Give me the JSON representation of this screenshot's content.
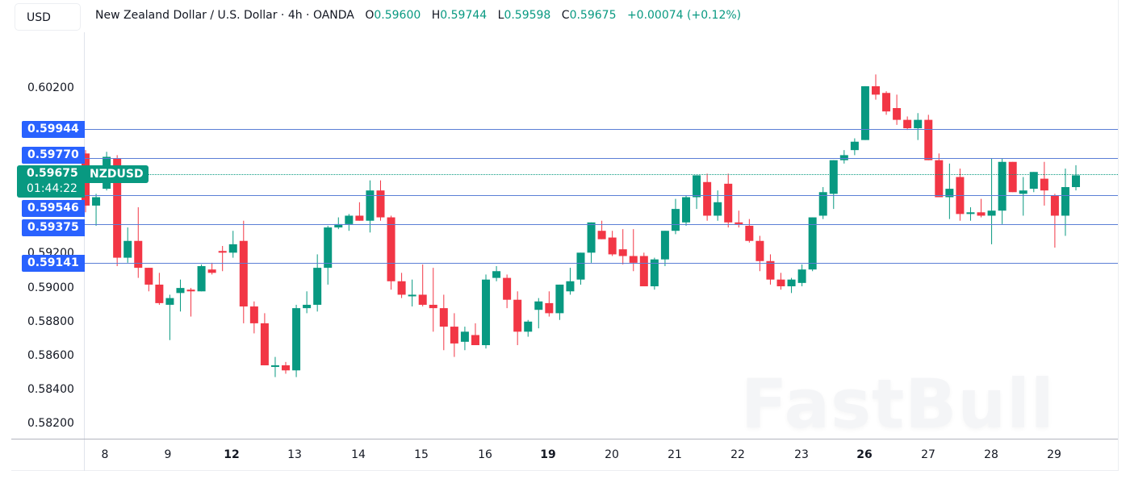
{
  "header": {
    "currency": "USD",
    "title": "New Zealand Dollar / U.S. Dollar · 4h · OANDA",
    "ohlc": {
      "o_label": "O",
      "o_value": "0.59600",
      "h_label": "H",
      "h_value": "0.59744",
      "l_label": "L",
      "l_value": "0.59598",
      "c_label": "C",
      "c_value": "0.59675",
      "change": "+0.00074 (+0.12%)"
    }
  },
  "last_price": {
    "price": "0.59675",
    "countdown": "01:44:22",
    "symbol": "NZDUSD"
  },
  "levels": [
    {
      "label": "0.59944",
      "value": 0.59944
    },
    {
      "label": "0.59770",
      "value": 0.5977
    },
    {
      "label": "0.59546",
      "value": 0.59546
    },
    {
      "label": "0.59375",
      "value": 0.59375
    },
    {
      "label": "0.59141",
      "value": 0.59141
    }
  ],
  "y_ticks": [
    "0.60200",
    "0.59200",
    "0.59000",
    "0.58800",
    "0.58600",
    "0.58400",
    "0.58200"
  ],
  "x_ticks": [
    {
      "label": "8",
      "bold": false
    },
    {
      "label": "9",
      "bold": false
    },
    {
      "label": "12",
      "bold": true
    },
    {
      "label": "13",
      "bold": false
    },
    {
      "label": "14",
      "bold": false
    },
    {
      "label": "15",
      "bold": false
    },
    {
      "label": "16",
      "bold": false
    },
    {
      "label": "19",
      "bold": true
    },
    {
      "label": "20",
      "bold": false
    },
    {
      "label": "21",
      "bold": false
    },
    {
      "label": "22",
      "bold": false
    },
    {
      "label": "23",
      "bold": false
    },
    {
      "label": "26",
      "bold": true
    },
    {
      "label": "27",
      "bold": false
    },
    {
      "label": "28",
      "bold": false
    },
    {
      "label": "29",
      "bold": false
    }
  ],
  "watermark": "FastBull",
  "colors": {
    "up": "#089981",
    "down": "#f23645",
    "level": "#2962ff",
    "text": "#131722"
  },
  "chart_data": {
    "type": "candlestick",
    "title": "New Zealand Dollar / U.S. Dollar · 4h · OANDA",
    "symbol": "NZDUSD",
    "timeframe": "4h",
    "xlabel": "",
    "ylabel": "",
    "ylim": [
      0.581,
      0.6042
    ],
    "grid": false,
    "x_tick_labels": [
      "8",
      "9",
      "12",
      "13",
      "14",
      "15",
      "16",
      "19",
      "20",
      "21",
      "22",
      "23",
      "26",
      "27",
      "28",
      "29"
    ],
    "y_tick_labels": [
      "0.60200",
      "0.59200",
      "0.59000",
      "0.58800",
      "0.58600",
      "0.58400",
      "0.58200"
    ],
    "horizontal_levels": [
      0.59944,
      0.5977,
      0.59546,
      0.59375,
      0.59141
    ],
    "last_price": 0.59675,
    "candles": [
      {
        "o": 0.5981,
        "h": 0.5983,
        "l": 0.5946,
        "c": 0.595
      },
      {
        "o": 0.595,
        "h": 0.5957,
        "l": 0.5938,
        "c": 0.5955
      },
      {
        "o": 0.596,
        "h": 0.5982,
        "l": 0.5959,
        "c": 0.5979
      },
      {
        "o": 0.5978,
        "h": 0.598,
        "l": 0.5914,
        "c": 0.5919
      },
      {
        "o": 0.5919,
        "h": 0.5937,
        "l": 0.5916,
        "c": 0.5929
      },
      {
        "o": 0.5929,
        "h": 0.5949,
        "l": 0.5907,
        "c": 0.5913
      },
      {
        "o": 0.5913,
        "h": 0.5913,
        "l": 0.5899,
        "c": 0.5903
      },
      {
        "o": 0.5903,
        "h": 0.591,
        "l": 0.5891,
        "c": 0.5892
      },
      {
        "o": 0.5891,
        "h": 0.5897,
        "l": 0.587,
        "c": 0.5895
      },
      {
        "o": 0.5898,
        "h": 0.5906,
        "l": 0.5887,
        "c": 0.5901
      },
      {
        "o": 0.59,
        "h": 0.5901,
        "l": 0.5884,
        "c": 0.5899
      },
      {
        "o": 0.5899,
        "h": 0.5915,
        "l": 0.5899,
        "c": 0.5914
      },
      {
        "o": 0.5912,
        "h": 0.5916,
        "l": 0.5909,
        "c": 0.591
      },
      {
        "o": 0.5923,
        "h": 0.5926,
        "l": 0.5911,
        "c": 0.5922
      },
      {
        "o": 0.5922,
        "h": 0.5935,
        "l": 0.5919,
        "c": 0.5927
      },
      {
        "o": 0.5929,
        "h": 0.5941,
        "l": 0.588,
        "c": 0.589
      },
      {
        "o": 0.589,
        "h": 0.5893,
        "l": 0.5874,
        "c": 0.588
      },
      {
        "o": 0.588,
        "h": 0.5886,
        "l": 0.5859,
        "c": 0.5855
      },
      {
        "o": 0.5855,
        "h": 0.586,
        "l": 0.5848,
        "c": 0.5855
      },
      {
        "o": 0.5855,
        "h": 0.5857,
        "l": 0.585,
        "c": 0.5852
      },
      {
        "o": 0.5852,
        "h": 0.5891,
        "l": 0.5848,
        "c": 0.5889
      },
      {
        "o": 0.5889,
        "h": 0.5899,
        "l": 0.5886,
        "c": 0.5891
      },
      {
        "o": 0.5891,
        "h": 0.5921,
        "l": 0.5887,
        "c": 0.5913
      },
      {
        "o": 0.5913,
        "h": 0.5938,
        "l": 0.5903,
        "c": 0.5937
      },
      {
        "o": 0.5937,
        "h": 0.5943,
        "l": 0.5936,
        "c": 0.5939
      },
      {
        "o": 0.5939,
        "h": 0.5945,
        "l": 0.5935,
        "c": 0.5944
      },
      {
        "o": 0.5944,
        "h": 0.5952,
        "l": 0.5941,
        "c": 0.5941
      },
      {
        "o": 0.5941,
        "h": 0.5965,
        "l": 0.5934,
        "c": 0.5959
      },
      {
        "o": 0.5959,
        "h": 0.5965,
        "l": 0.5941,
        "c": 0.5943
      },
      {
        "o": 0.5943,
        "h": 0.5944,
        "l": 0.59,
        "c": 0.5905
      },
      {
        "o": 0.5905,
        "h": 0.591,
        "l": 0.5895,
        "c": 0.5897
      },
      {
        "o": 0.5897,
        "h": 0.5906,
        "l": 0.589,
        "c": 0.5897
      },
      {
        "o": 0.5897,
        "h": 0.5915,
        "l": 0.589,
        "c": 0.5891
      },
      {
        "o": 0.5891,
        "h": 0.5913,
        "l": 0.5875,
        "c": 0.5889
      },
      {
        "o": 0.5889,
        "h": 0.5897,
        "l": 0.5864,
        "c": 0.5878
      },
      {
        "o": 0.5878,
        "h": 0.5886,
        "l": 0.586,
        "c": 0.5868
      },
      {
        "o": 0.5869,
        "h": 0.5878,
        "l": 0.5864,
        "c": 0.5875
      },
      {
        "o": 0.5873,
        "h": 0.588,
        "l": 0.5867,
        "c": 0.5867
      },
      {
        "o": 0.5867,
        "h": 0.5909,
        "l": 0.5865,
        "c": 0.5906
      },
      {
        "o": 0.5907,
        "h": 0.5914,
        "l": 0.5905,
        "c": 0.5911
      },
      {
        "o": 0.5907,
        "h": 0.5909,
        "l": 0.5889,
        "c": 0.5894
      },
      {
        "o": 0.5894,
        "h": 0.5899,
        "l": 0.5867,
        "c": 0.5875
      },
      {
        "o": 0.5875,
        "h": 0.5882,
        "l": 0.5872,
        "c": 0.5881
      },
      {
        "o": 0.5888,
        "h": 0.5895,
        "l": 0.5877,
        "c": 0.5893
      },
      {
        "o": 0.5892,
        "h": 0.5899,
        "l": 0.5884,
        "c": 0.5886
      },
      {
        "o": 0.5886,
        "h": 0.5902,
        "l": 0.5882,
        "c": 0.5903
      },
      {
        "o": 0.5899,
        "h": 0.5913,
        "l": 0.5897,
        "c": 0.5905
      },
      {
        "o": 0.5906,
        "h": 0.5917,
        "l": 0.5903,
        "c": 0.5922
      },
      {
        "o": 0.5922,
        "h": 0.5937,
        "l": 0.5916,
        "c": 0.594
      },
      {
        "o": 0.5935,
        "h": 0.5941,
        "l": 0.593,
        "c": 0.593
      },
      {
        "o": 0.5931,
        "h": 0.5935,
        "l": 0.592,
        "c": 0.5921
      },
      {
        "o": 0.5924,
        "h": 0.5936,
        "l": 0.5915,
        "c": 0.592
      },
      {
        "o": 0.592,
        "h": 0.5936,
        "l": 0.5911,
        "c": 0.5916
      },
      {
        "o": 0.592,
        "h": 0.5922,
        "l": 0.5905,
        "c": 0.5902
      },
      {
        "o": 0.5902,
        "h": 0.5919,
        "l": 0.59,
        "c": 0.5918
      },
      {
        "o": 0.5918,
        "h": 0.5935,
        "l": 0.5914,
        "c": 0.5935
      },
      {
        "o": 0.5935,
        "h": 0.5954,
        "l": 0.5933,
        "c": 0.5948
      },
      {
        "o": 0.594,
        "h": 0.5956,
        "l": 0.5938,
        "c": 0.5955
      },
      {
        "o": 0.5955,
        "h": 0.5967,
        "l": 0.5948,
        "c": 0.5968
      },
      {
        "o": 0.5964,
        "h": 0.5969,
        "l": 0.5941,
        "c": 0.5944
      },
      {
        "o": 0.5944,
        "h": 0.5959,
        "l": 0.5941,
        "c": 0.5952
      },
      {
        "o": 0.5963,
        "h": 0.5969,
        "l": 0.5937,
        "c": 0.594
      },
      {
        "o": 0.594,
        "h": 0.5947,
        "l": 0.5937,
        "c": 0.5939
      },
      {
        "o": 0.5938,
        "h": 0.5942,
        "l": 0.5928,
        "c": 0.5929
      },
      {
        "o": 0.5929,
        "h": 0.5932,
        "l": 0.5911,
        "c": 0.5917
      },
      {
        "o": 0.5917,
        "h": 0.5921,
        "l": 0.5903,
        "c": 0.5906
      },
      {
        "o": 0.5906,
        "h": 0.591,
        "l": 0.59,
        "c": 0.5902
      },
      {
        "o": 0.5902,
        "h": 0.5907,
        "l": 0.5898,
        "c": 0.5906
      },
      {
        "o": 0.5904,
        "h": 0.5915,
        "l": 0.5902,
        "c": 0.5912
      },
      {
        "o": 0.5912,
        "h": 0.5931,
        "l": 0.5911,
        "c": 0.5943
      },
      {
        "o": 0.5944,
        "h": 0.5961,
        "l": 0.5942,
        "c": 0.5958
      },
      {
        "o": 0.5957,
        "h": 0.5975,
        "l": 0.5948,
        "c": 0.5977
      },
      {
        "o": 0.5977,
        "h": 0.5983,
        "l": 0.5975,
        "c": 0.598
      },
      {
        "o": 0.5983,
        "h": 0.599,
        "l": 0.598,
        "c": 0.5988
      },
      {
        "o": 0.5989,
        "h": 0.6005,
        "l": 0.5991,
        "c": 0.6021
      },
      {
        "o": 0.6021,
        "h": 0.6028,
        "l": 0.6013,
        "c": 0.6016
      },
      {
        "o": 0.6017,
        "h": 0.6018,
        "l": 0.6004,
        "c": 0.6006
      },
      {
        "o": 0.6008,
        "h": 0.6016,
        "l": 0.5998,
        "c": 0.6001
      },
      {
        "o": 0.6001,
        "h": 0.6003,
        "l": 0.5995,
        "c": 0.5996
      },
      {
        "o": 0.5996,
        "h": 0.6005,
        "l": 0.5989,
        "c": 0.6001
      },
      {
        "o": 0.6001,
        "h": 0.6004,
        "l": 0.5978,
        "c": 0.5977
      },
      {
        "o": 0.5977,
        "h": 0.5981,
        "l": 0.5955,
        "c": 0.5955
      },
      {
        "o": 0.5955,
        "h": 0.5975,
        "l": 0.5942,
        "c": 0.596
      },
      {
        "o": 0.5967,
        "h": 0.5972,
        "l": 0.5941,
        "c": 0.5945
      },
      {
        "o": 0.5945,
        "h": 0.5949,
        "l": 0.5941,
        "c": 0.5946
      },
      {
        "o": 0.5946,
        "h": 0.5954,
        "l": 0.5943,
        "c": 0.5944
      },
      {
        "o": 0.5944,
        "h": 0.5978,
        "l": 0.5927,
        "c": 0.5947
      },
      {
        "o": 0.5947,
        "h": 0.5978,
        "l": 0.5939,
        "c": 0.5976
      },
      {
        "o": 0.5976,
        "h": 0.5976,
        "l": 0.5958,
        "c": 0.5958
      },
      {
        "o": 0.5957,
        "h": 0.5967,
        "l": 0.5944,
        "c": 0.5959
      },
      {
        "o": 0.596,
        "h": 0.597,
        "l": 0.5958,
        "c": 0.597
      },
      {
        "o": 0.5966,
        "h": 0.5976,
        "l": 0.595,
        "c": 0.5959
      },
      {
        "o": 0.5956,
        "h": 0.5957,
        "l": 0.5925,
        "c": 0.5944
      },
      {
        "o": 0.5944,
        "h": 0.5972,
        "l": 0.5932,
        "c": 0.5961
      },
      {
        "o": 0.5961,
        "h": 0.5974,
        "l": 0.5959,
        "c": 0.5968
      }
    ]
  }
}
